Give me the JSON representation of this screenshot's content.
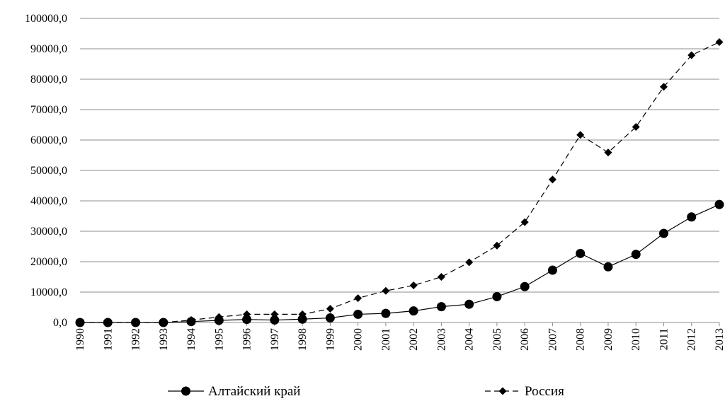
{
  "chart_data": {
    "type": "line",
    "title": "",
    "xlabel": "",
    "ylabel": "",
    "x": [
      "1990",
      "1991",
      "1992",
      "1993",
      "1994",
      "1995",
      "1996",
      "1997",
      "1998",
      "1999",
      "2000",
      "2001",
      "2002",
      "2003",
      "2004",
      "2005",
      "2006",
      "2007",
      "2008",
      "2009",
      "2010",
      "2011",
      "2012",
      "2013"
    ],
    "ylim": [
      0,
      100000
    ],
    "yticks": [
      0,
      10000,
      20000,
      30000,
      40000,
      50000,
      60000,
      70000,
      80000,
      90000,
      100000
    ],
    "ytick_labels": [
      "0,0",
      "10000,0",
      "20000,0",
      "30000,0",
      "40000,0",
      "50000,0",
      "60000,0",
      "70000,0",
      "80000,0",
      "90000,0",
      "100000,0"
    ],
    "grid": "horizontal",
    "legend_position": "bottom",
    "series": [
      {
        "name": "Алтайский край",
        "style": "solid",
        "marker": "circle",
        "color": "#000000",
        "values": [
          0,
          0,
          0,
          0,
          300,
          700,
          1000,
          800,
          1100,
          1500,
          2700,
          3000,
          3800,
          5200,
          6000,
          8500,
          11800,
          17200,
          22700,
          18300,
          22400,
          29300,
          34700,
          38800
        ]
      },
      {
        "name": "Россия",
        "style": "dashed",
        "marker": "diamond",
        "color": "#000000",
        "values": [
          0,
          0,
          0,
          0,
          800,
          1800,
          2700,
          2700,
          2700,
          4500,
          8000,
          10400,
          12200,
          15000,
          19800,
          25300,
          33000,
          47000,
          61700,
          55900,
          64300,
          77500,
          87900,
          92200
        ]
      }
    ]
  }
}
